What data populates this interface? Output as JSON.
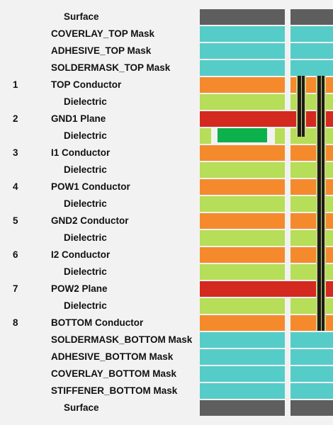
{
  "colors": {
    "surface": "#5e5e5e",
    "mask": "#55ccc8",
    "conductor": "#f48a2c",
    "dielectric": "#b6de58",
    "plane": "#d4291f",
    "background": "#f2f2f2",
    "component": "#0db14b",
    "via": "#1c1c14"
  },
  "layers": [
    {
      "num": "",
      "name": "Surface",
      "type": "surface"
    },
    {
      "num": "",
      "name": "COVERLAY_TOP Mask",
      "type": "mask"
    },
    {
      "num": "",
      "name": "ADHESIVE_TOP Mask",
      "type": "mask"
    },
    {
      "num": "",
      "name": "SOLDERMASK_TOP Mask",
      "type": "mask"
    },
    {
      "num": "1",
      "name": "TOP Conductor",
      "type": "conductor"
    },
    {
      "num": "",
      "name": "Dielectric",
      "type": "dielectric"
    },
    {
      "num": "2",
      "name": "GND1 Plane",
      "type": "plane"
    },
    {
      "num": "",
      "name": "Dielectric",
      "type": "dielectric-cavity"
    },
    {
      "num": "3",
      "name": "I1 Conductor",
      "type": "conductor"
    },
    {
      "num": "",
      "name": "Dielectric",
      "type": "dielectric"
    },
    {
      "num": "4",
      "name": "POW1 Conductor",
      "type": "conductor"
    },
    {
      "num": "",
      "name": "Dielectric",
      "type": "dielectric"
    },
    {
      "num": "5",
      "name": "GND2 Conductor",
      "type": "conductor"
    },
    {
      "num": "",
      "name": "Dielectric",
      "type": "dielectric"
    },
    {
      "num": "6",
      "name": "I2 Conductor",
      "type": "conductor"
    },
    {
      "num": "",
      "name": "Dielectric",
      "type": "dielectric"
    },
    {
      "num": "7",
      "name": "POW2 Plane",
      "type": "plane"
    },
    {
      "num": "",
      "name": "Dielectric",
      "type": "dielectric"
    },
    {
      "num": "8",
      "name": "BOTTOM Conductor",
      "type": "conductor"
    },
    {
      "num": "",
      "name": "SOLDERMASK_BOTTOM Mask",
      "type": "mask"
    },
    {
      "num": "",
      "name": "ADHESIVE_BOTTOM Mask",
      "type": "mask"
    },
    {
      "num": "",
      "name": "COVERLAY_BOTTOM Mask",
      "type": "mask"
    },
    {
      "num": "",
      "name": "STIFFENER_BOTTOM Mask",
      "type": "mask"
    },
    {
      "num": "",
      "name": "Surface",
      "type": "surface"
    }
  ]
}
